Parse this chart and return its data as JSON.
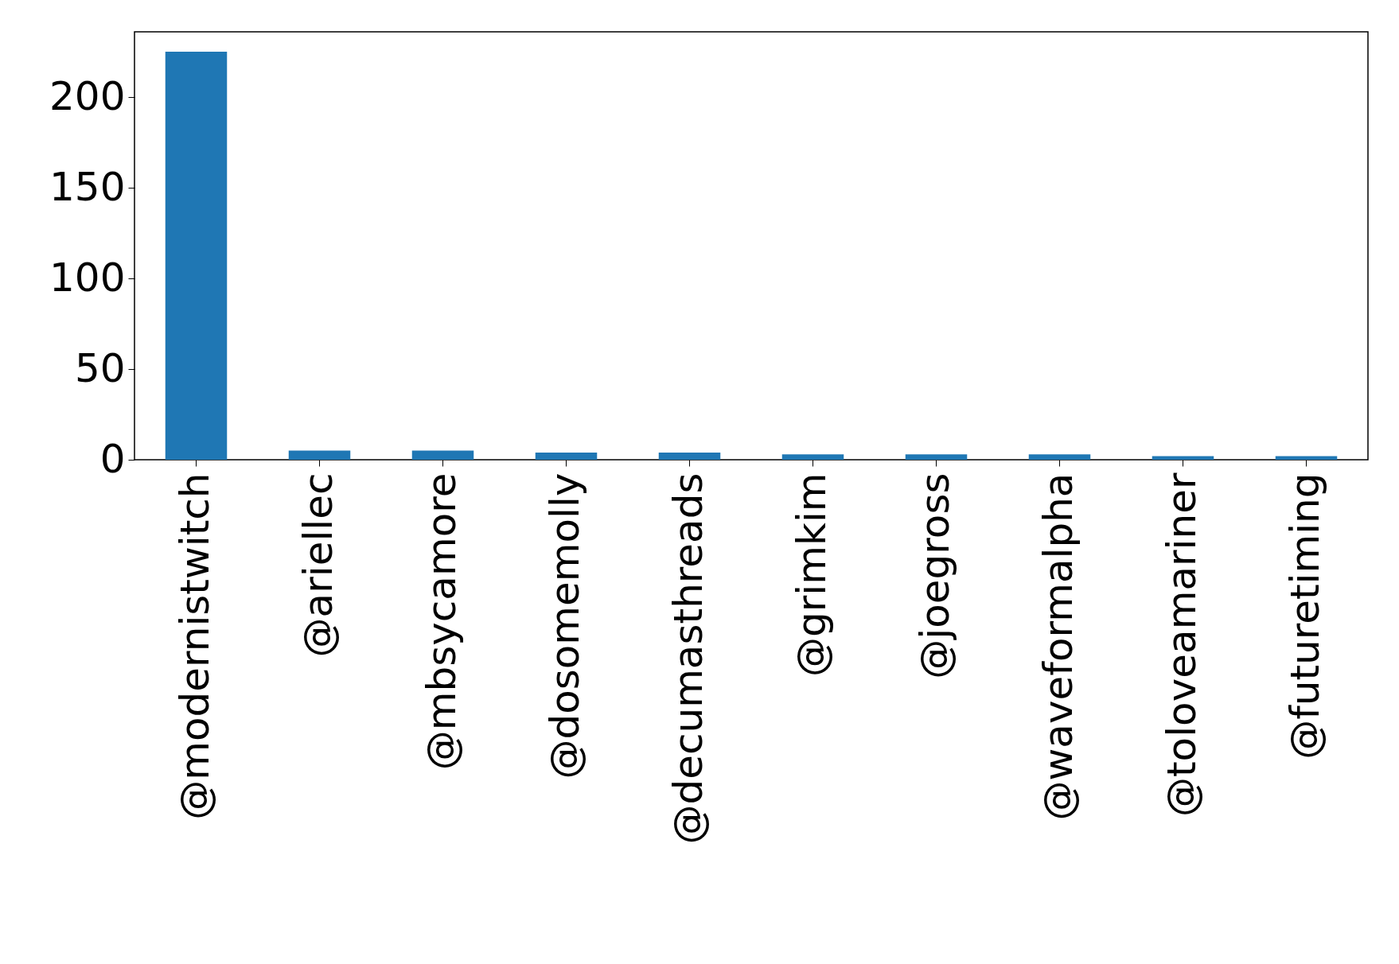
{
  "chart_data": {
    "type": "bar",
    "categories": [
      "@modernistwitch",
      "@ariellec",
      "@mbsycamore",
      "@dosomemolly",
      "@decumasthreads",
      "@grimkim",
      "@joegross",
      "@waveformalpha",
      "@toloveamariner",
      "@futuretiming"
    ],
    "values": [
      225,
      5,
      5,
      4,
      4,
      3,
      3,
      3,
      2,
      2
    ],
    "color": "#1f77b4",
    "ylim": [
      0,
      236
    ],
    "yticks": [
      0,
      50,
      100,
      150,
      200
    ],
    "grid": false
  }
}
